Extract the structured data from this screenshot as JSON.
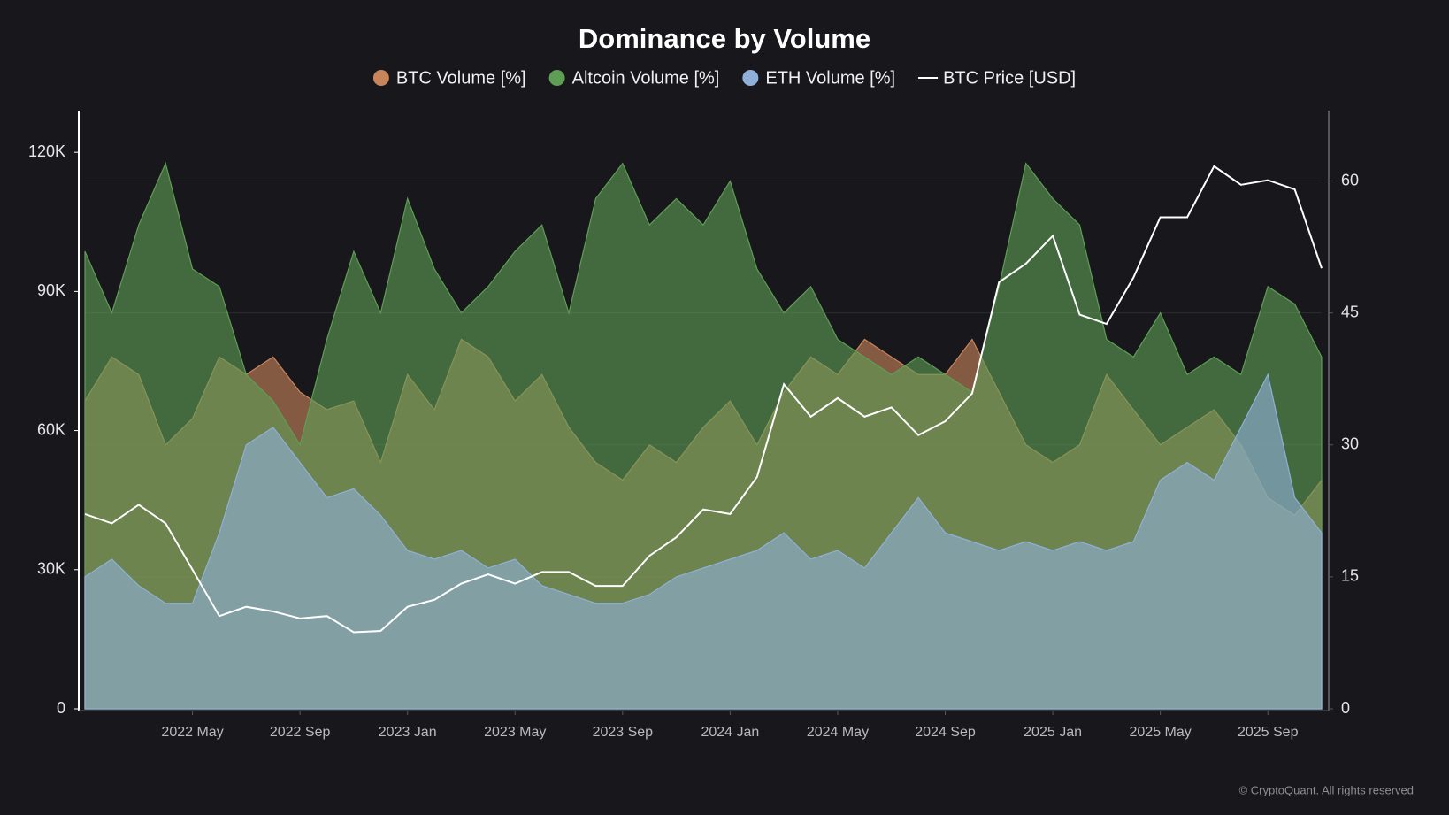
{
  "chart_data": {
    "type": "area",
    "title": "Dominance by Volume",
    "credit": "© CryptoQuant. All rights reserved",
    "x": [
      "2022-01",
      "2022-02",
      "2022-03",
      "2022-04",
      "2022-05",
      "2022-06",
      "2022-07",
      "2022-08",
      "2022-09",
      "2022-10",
      "2022-11",
      "2022-12",
      "2023-01",
      "2023-02",
      "2023-03",
      "2023-04",
      "2023-05",
      "2023-06",
      "2023-07",
      "2023-08",
      "2023-09",
      "2023-10",
      "2023-11",
      "2023-12",
      "2024-01",
      "2024-02",
      "2024-03",
      "2024-04",
      "2024-05",
      "2024-06",
      "2024-07",
      "2024-08",
      "2024-09",
      "2024-10",
      "2024-11",
      "2024-12",
      "2025-01",
      "2025-02",
      "2025-03",
      "2025-04",
      "2025-05",
      "2025-06",
      "2025-07",
      "2025-08",
      "2025-09",
      "2025-10",
      "2025-11"
    ],
    "xlim": [
      "2022-01",
      "2025-11"
    ],
    "xticks": [
      {
        "value": "2022-05",
        "label": "2022 May"
      },
      {
        "value": "2022-09",
        "label": "2022 Sep"
      },
      {
        "value": "2023-01",
        "label": "2023 Jan"
      },
      {
        "value": "2023-05",
        "label": "2023 May"
      },
      {
        "value": "2023-09",
        "label": "2023 Sep"
      },
      {
        "value": "2024-01",
        "label": "2024 Jan"
      },
      {
        "value": "2024-05",
        "label": "2024 May"
      },
      {
        "value": "2024-09",
        "label": "2024 Sep"
      },
      {
        "value": "2025-01",
        "label": "2025 Jan"
      },
      {
        "value": "2025-05",
        "label": "2025 May"
      },
      {
        "value": "2025-09",
        "label": "2025 Sep"
      }
    ],
    "ylim": [
      0,
      129000
    ],
    "yticks": [
      0,
      {
        "value": 30000,
        "label": "30K"
      },
      {
        "value": 60000,
        "label": "60K"
      },
      {
        "value": 90000,
        "label": "90K"
      },
      {
        "value": 120000,
        "label": "120K"
      }
    ],
    "y2lim": [
      0,
      68
    ],
    "y2ticks": [
      0,
      15,
      30,
      45,
      60
    ],
    "grid": true,
    "series": [
      {
        "name": "BTC Volume [%]",
        "color": "#c8845a",
        "axis": "y2",
        "values": [
          35,
          40,
          38,
          30,
          33,
          40,
          38,
          40,
          36,
          34,
          35,
          28,
          38,
          34,
          42,
          40,
          35,
          38,
          32,
          28,
          26,
          30,
          28,
          32,
          35,
          30,
          36,
          40,
          38,
          42,
          40,
          38,
          38,
          42,
          36,
          30,
          28,
          30,
          38,
          34,
          30,
          32,
          34,
          30,
          24,
          22,
          26
        ]
      },
      {
        "name": "Altcoin Volume [%]",
        "color": "#5f9e55",
        "axis": "y2",
        "values": [
          52,
          45,
          55,
          62,
          50,
          48,
          38,
          35,
          30,
          42,
          52,
          45,
          58,
          50,
          45,
          48,
          52,
          55,
          45,
          58,
          62,
          55,
          58,
          55,
          60,
          50,
          45,
          48,
          42,
          40,
          38,
          40,
          38,
          36,
          48,
          62,
          58,
          55,
          42,
          40,
          45,
          38,
          40,
          38,
          48,
          46,
          40
        ]
      },
      {
        "name": "ETH Volume [%]",
        "color": "#8fb0d8",
        "axis": "y2",
        "values": [
          15,
          17,
          14,
          12,
          12,
          20,
          30,
          32,
          28,
          24,
          25,
          22,
          18,
          17,
          18,
          16,
          17,
          14,
          13,
          12,
          12,
          13,
          15,
          16,
          17,
          18,
          20,
          17,
          18,
          16,
          20,
          24,
          20,
          19,
          18,
          19,
          18,
          19,
          18,
          19,
          26,
          28,
          26,
          32,
          38,
          24,
          20
        ]
      },
      {
        "name": "BTC Price [USD]",
        "color": "#ffffff",
        "axis": "y",
        "values": [
          42000,
          40000,
          44000,
          40000,
          30000,
          20000,
          22000,
          21000,
          19500,
          20000,
          16500,
          16800,
          22000,
          23500,
          27000,
          29000,
          27000,
          29500,
          29500,
          26500,
          26500,
          33000,
          37000,
          43000,
          42000,
          50000,
          70000,
          63000,
          67000,
          63000,
          65000,
          59000,
          62000,
          68000,
          92000,
          96000,
          102000,
          85000,
          83000,
          93000,
          106000,
          106000,
          117000,
          113000,
          114000,
          112000,
          95000
        ]
      }
    ]
  }
}
